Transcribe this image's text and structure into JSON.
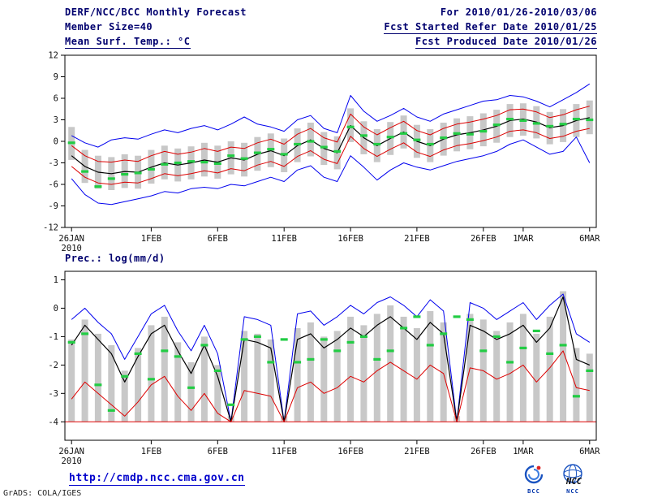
{
  "header": {
    "title_left": "DERF/NCC/BCC Monthly Forecast",
    "title_right": "For 2010/01/26-2010/03/06",
    "member_size": "Member Size=40",
    "fcst_started": "Fcst Started Refer Date 2010/01/25",
    "fcst_produced": "Fcst Produced Date 2010/01/26"
  },
  "footer": {
    "url": "http://cmdp.ncc.cma.gov.cn",
    "credit": "GrADS: COLA/IGES",
    "bcc_logo_label": "BCC",
    "ncc_logo_label": "NCC"
  },
  "colors": {
    "header_text": "#00006e",
    "envelope": "#0000ee",
    "quartile": "#dd0000",
    "mean": "#000000",
    "observation": "#22cc44",
    "bars": "#c8c8c8"
  },
  "chart_data": [
    {
      "type": "line",
      "title": "Mean Surf. Temp.: °C",
      "ylabel": "°C",
      "ylim": [
        -12,
        12
      ],
      "yticks": [
        12,
        9,
        6,
        3,
        0,
        -3,
        -6,
        -9,
        -12
      ],
      "grid": false,
      "legend": false,
      "n_points": 40,
      "x_tick_labels": [
        "26JAN",
        "1FEB",
        "6FEB",
        "11FEB",
        "16FEB",
        "21FEB",
        "26FEB",
        "1MAR",
        "6MAR"
      ],
      "x_tick_indices": [
        0,
        6,
        11,
        16,
        21,
        26,
        31,
        34,
        39
      ],
      "x_year_label": "2010",
      "bars": {
        "name": "ensemble-spread",
        "color": "#c8c8c8",
        "top": [
          2.0,
          -1.2,
          -2.0,
          -2.2,
          -1.8,
          -2.0,
          -1.2,
          -0.6,
          -1.0,
          -0.7,
          -0.2,
          -0.6,
          0.0,
          -0.2,
          0.6,
          1.1,
          0.4,
          1.8,
          2.6,
          1.3,
          0.7,
          4.6,
          2.8,
          1.7,
          2.7,
          3.6,
          2.3,
          1.7,
          2.6,
          3.2,
          3.5,
          3.9,
          4.4,
          5.2,
          5.3,
          4.9,
          4.1,
          4.5,
          5.2,
          5.7
        ],
        "bottom": [
          -2.6,
          -5.8,
          -6.6,
          -6.8,
          -6.5,
          -6.6,
          -5.9,
          -5.3,
          -5.6,
          -5.3,
          -4.9,
          -5.2,
          -4.6,
          -4.9,
          -4.1,
          -3.6,
          -4.3,
          -2.9,
          -2.1,
          -3.3,
          -3.9,
          -0.1,
          -1.8,
          -2.9,
          -1.9,
          -1.0,
          -2.3,
          -2.9,
          -2.0,
          -1.4,
          -1.1,
          -0.7,
          -0.2,
          0.6,
          0.8,
          0.4,
          -0.4,
          -0.1,
          0.6,
          1.0
        ]
      },
      "series": [
        {
          "name": "ensemble-max",
          "color": "#0000ee",
          "width": 1,
          "values": [
            0.8,
            -0.2,
            -0.8,
            0.2,
            0.5,
            0.3,
            1.0,
            1.6,
            1.2,
            1.8,
            2.2,
            1.6,
            2.4,
            3.4,
            2.4,
            2.0,
            1.4,
            3.0,
            3.6,
            1.8,
            1.2,
            6.4,
            4.2,
            2.8,
            3.6,
            4.6,
            3.4,
            2.8,
            3.8,
            4.4,
            5.0,
            5.6,
            5.8,
            6.4,
            6.2,
            5.6,
            4.8,
            5.8,
            6.8,
            8.0
          ]
        },
        {
          "name": "upper-quartile",
          "color": "#dd0000",
          "width": 1,
          "values": [
            -0.6,
            -2.0,
            -2.8,
            -2.9,
            -2.6,
            -2.8,
            -2.0,
            -1.4,
            -1.8,
            -1.5,
            -1.0,
            -1.4,
            -0.8,
            -1.0,
            -0.2,
            0.3,
            -0.4,
            1.0,
            1.8,
            0.5,
            -0.1,
            3.8,
            2.0,
            0.9,
            1.9,
            2.8,
            1.5,
            0.9,
            1.8,
            2.4,
            2.7,
            3.1,
            3.6,
            4.4,
            4.5,
            4.1,
            3.3,
            3.7,
            4.4,
            4.9
          ]
        },
        {
          "name": "ensemble-mean",
          "color": "#000000",
          "width": 1.2,
          "values": [
            -2.0,
            -3.5,
            -4.3,
            -4.5,
            -4.2,
            -4.3,
            -3.6,
            -3.0,
            -3.3,
            -3.0,
            -2.6,
            -2.9,
            -2.3,
            -2.6,
            -1.8,
            -1.3,
            -2.0,
            -0.6,
            0.2,
            -1.0,
            -1.6,
            2.2,
            0.5,
            -0.6,
            0.4,
            1.3,
            0.0,
            -0.6,
            0.3,
            0.9,
            1.2,
            1.6,
            2.1,
            2.9,
            3.1,
            2.7,
            1.9,
            2.2,
            2.9,
            3.3
          ]
        },
        {
          "name": "lower-quartile",
          "color": "#dd0000",
          "width": 1,
          "values": [
            -3.5,
            -5.0,
            -5.8,
            -6.0,
            -5.7,
            -5.8,
            -5.2,
            -4.5,
            -4.8,
            -4.5,
            -4.1,
            -4.4,
            -3.8,
            -4.1,
            -3.3,
            -2.8,
            -3.5,
            -2.1,
            -1.3,
            -2.5,
            -3.1,
            0.7,
            -1.0,
            -2.1,
            -1.1,
            -0.2,
            -1.5,
            -2.1,
            -1.2,
            -0.6,
            -0.3,
            0.1,
            0.6,
            1.4,
            1.6,
            1.2,
            0.4,
            0.7,
            1.4,
            1.8
          ]
        },
        {
          "name": "ensemble-min",
          "color": "#0000ee",
          "width": 1,
          "values": [
            -5.2,
            -7.4,
            -8.6,
            -8.8,
            -8.4,
            -8.0,
            -7.6,
            -7.0,
            -7.2,
            -6.6,
            -6.4,
            -6.6,
            -6.0,
            -6.2,
            -5.6,
            -5.0,
            -5.6,
            -4.0,
            -3.4,
            -5.0,
            -5.6,
            -2.0,
            -3.6,
            -5.4,
            -4.0,
            -3.0,
            -3.6,
            -4.0,
            -3.4,
            -2.8,
            -2.4,
            -2.0,
            -1.4,
            -0.4,
            0.2,
            -0.8,
            -1.8,
            -1.4,
            0.6,
            -3.0
          ]
        }
      ],
      "markers": {
        "name": "observation",
        "color": "#22cc44",
        "values": [
          -0.2,
          -4.2,
          -6.3,
          -5.2,
          -4.6,
          -4.4,
          -3.9,
          -3.2,
          -3.0,
          -2.8,
          -2.9,
          -3.1,
          -2.0,
          -2.4,
          -1.6,
          -1.1,
          -1.8,
          -0.4,
          0.0,
          -0.8,
          -1.4,
          2.0,
          0.8,
          -0.4,
          0.6,
          1.1,
          0.2,
          -0.4,
          0.5,
          1.1,
          1.0,
          1.4,
          2.3,
          3.1,
          2.9,
          2.5,
          2.1,
          2.4,
          3.1,
          3.0
        ]
      }
    },
    {
      "type": "line",
      "title": "Prec.: log(mm/d)",
      "ylabel": "log(mm/d)",
      "ylim": [
        -4.65,
        1.3
      ],
      "yticks": [
        1,
        0,
        -1,
        -2,
        -3,
        -4
      ],
      "grid": false,
      "legend": false,
      "n_points": 40,
      "x_tick_labels": [
        "26JAN",
        "1FEB",
        "6FEB",
        "11FEB",
        "16FEB",
        "21FEB",
        "26FEB",
        "1MAR",
        "6MAR"
      ],
      "x_tick_indices": [
        0,
        6,
        11,
        16,
        21,
        26,
        31,
        34,
        39
      ],
      "x_year_label": "2010",
      "const_lines": [
        {
          "name": "zero-precip-floor",
          "value": -4,
          "color": "#dd0000"
        }
      ],
      "bars": {
        "name": "ensemble-spread",
        "color": "#c8c8c8",
        "top": [
          -1.1,
          -0.4,
          -0.9,
          -1.3,
          -2.2,
          -1.4,
          -0.6,
          -0.3,
          -1.2,
          -1.9,
          -1.0,
          -2.0,
          -3.8,
          -0.8,
          -0.9,
          -1.1,
          -3.8,
          -0.7,
          -0.5,
          -1.0,
          -0.8,
          -0.3,
          -0.6,
          -0.2,
          0.1,
          -0.3,
          -0.7,
          -0.1,
          -0.5,
          -3.8,
          -0.2,
          -0.4,
          -0.8,
          -0.5,
          -0.2,
          -0.9,
          -0.3,
          0.6,
          -1.4,
          -1.6
        ],
        "bottom": -4
      },
      "series": [
        {
          "name": "ensemble-max",
          "color": "#0000ee",
          "width": 1,
          "values": [
            -0.4,
            0.0,
            -0.5,
            -0.9,
            -1.8,
            -1.0,
            -0.2,
            0.1,
            -0.8,
            -1.5,
            -0.6,
            -1.6,
            -4.0,
            -0.3,
            -0.4,
            -0.6,
            -4.0,
            -0.2,
            -0.1,
            -0.6,
            -0.3,
            0.1,
            -0.2,
            0.2,
            0.4,
            0.1,
            -0.3,
            0.3,
            -0.1,
            -4.0,
            0.2,
            0.0,
            -0.4,
            -0.1,
            0.2,
            -0.4,
            0.1,
            0.5,
            -0.9,
            -1.2
          ]
        },
        {
          "name": "ensemble-mean",
          "color": "#000000",
          "width": 1.2,
          "values": [
            -1.3,
            -0.6,
            -1.1,
            -1.6,
            -2.6,
            -1.7,
            -0.9,
            -0.6,
            -1.5,
            -2.3,
            -1.3,
            -2.4,
            -4.0,
            -1.1,
            -1.2,
            -1.4,
            -4.0,
            -1.1,
            -0.9,
            -1.4,
            -1.1,
            -0.7,
            -1.0,
            -0.6,
            -0.3,
            -0.7,
            -1.1,
            -0.5,
            -0.9,
            -4.0,
            -0.6,
            -0.8,
            -1.1,
            -0.9,
            -0.6,
            -1.2,
            -0.7,
            0.4,
            -1.8,
            -2.0
          ]
        },
        {
          "name": "lower-quartile",
          "color": "#dd0000",
          "width": 1,
          "values": [
            -3.2,
            -2.6,
            -3.0,
            -3.4,
            -3.8,
            -3.3,
            -2.7,
            -2.4,
            -3.1,
            -3.6,
            -3.0,
            -3.7,
            -4.0,
            -2.9,
            -3.0,
            -3.1,
            -4.0,
            -2.8,
            -2.6,
            -3.0,
            -2.8,
            -2.4,
            -2.6,
            -2.2,
            -1.9,
            -2.2,
            -2.5,
            -2.0,
            -2.3,
            -4.0,
            -2.1,
            -2.2,
            -2.5,
            -2.3,
            -2.0,
            -2.6,
            -2.1,
            -1.5,
            -2.8,
            -2.9
          ]
        }
      ],
      "markers": {
        "name": "observation",
        "color": "#22cc44",
        "values": [
          -1.2,
          -0.9,
          -2.7,
          -3.6,
          -2.4,
          -1.6,
          -2.5,
          -1.5,
          -1.7,
          -2.8,
          -1.3,
          -2.2,
          -3.4,
          -1.1,
          -1.0,
          -1.9,
          -1.1,
          -1.9,
          -1.8,
          -1.1,
          -1.5,
          -1.2,
          -1.0,
          -1.8,
          -1.5,
          -0.7,
          -0.3,
          -1.3,
          -0.9,
          -0.3,
          -0.4,
          -1.5,
          -1.0,
          -1.9,
          -1.4,
          -0.8,
          -1.6,
          -1.3,
          -3.1,
          -2.2
        ]
      }
    }
  ]
}
